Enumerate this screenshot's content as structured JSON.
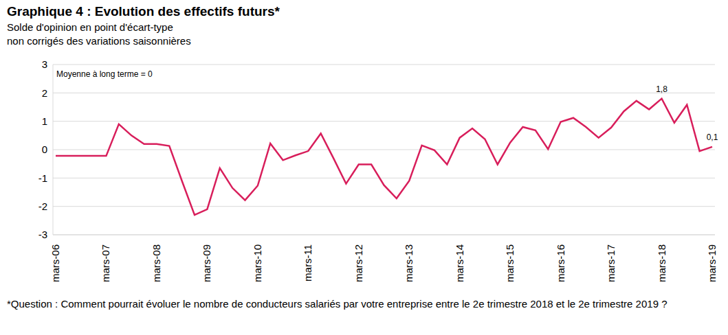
{
  "chart_data": {
    "type": "line",
    "title": "Graphique 4 : Evolution des effectifs futurs*",
    "subtitle": [
      "Solde d'opinion en point d'écart-type",
      "non corrigés des variations saisonnières"
    ],
    "annotations": [
      "Moyenne à long terme = 0"
    ],
    "footnote": "*Question : Comment pourrait évoluer le nombre de conducteurs salariés par votre entreprise entre le 2e trimestre 2018 et le 2e trimestre 2019 ?",
    "categories": [
      "mars-06",
      null,
      null,
      null,
      "mars-07",
      null,
      null,
      null,
      "mars-08",
      null,
      null,
      null,
      "mars-09",
      null,
      null,
      null,
      "mars-10",
      null,
      null,
      null,
      "mars-11",
      null,
      null,
      null,
      "mars-12",
      null,
      null,
      null,
      "mars-13",
      null,
      null,
      null,
      "mars-14",
      null,
      null,
      null,
      "mars-15",
      null,
      null,
      null,
      "mars-16",
      null,
      null,
      null,
      "mars-17",
      null,
      null,
      null,
      "mars-18",
      null,
      null,
      null,
      "mars-19"
    ],
    "values": [
      -0.22,
      -0.22,
      -0.22,
      -0.22,
      -0.22,
      0.9,
      0.5,
      0.2,
      0.2,
      0.13,
      -1.1,
      -2.3,
      -2.1,
      -0.65,
      -1.35,
      -1.78,
      -1.27,
      0.22,
      -0.37,
      -0.2,
      -0.05,
      0.57,
      -0.3,
      -1.2,
      -0.52,
      -0.52,
      -1.25,
      -1.72,
      -1.1,
      0.15,
      -0.02,
      -0.52,
      0.42,
      0.75,
      0.37,
      -0.52,
      0.25,
      0.8,
      0.68,
      0.02,
      0.98,
      1.12,
      0.8,
      0.42,
      0.78,
      1.35,
      1.72,
      1.42,
      1.8,
      0.95,
      1.58,
      -0.05,
      0.1
    ],
    "value_labels": [
      null,
      null,
      null,
      null,
      null,
      null,
      null,
      null,
      null,
      null,
      null,
      null,
      null,
      null,
      null,
      null,
      null,
      null,
      null,
      null,
      null,
      null,
      null,
      null,
      null,
      null,
      null,
      null,
      null,
      null,
      null,
      null,
      null,
      null,
      null,
      null,
      null,
      null,
      null,
      null,
      null,
      null,
      null,
      null,
      null,
      null,
      null,
      null,
      "1,8",
      null,
      null,
      null,
      "0,1"
    ],
    "data_labels": true,
    "color": "#d81e5b",
    "ylim": [
      -3,
      3
    ],
    "yticks": [
      -3,
      -2,
      -1,
      0,
      1,
      2,
      3
    ],
    "grid": true
  }
}
